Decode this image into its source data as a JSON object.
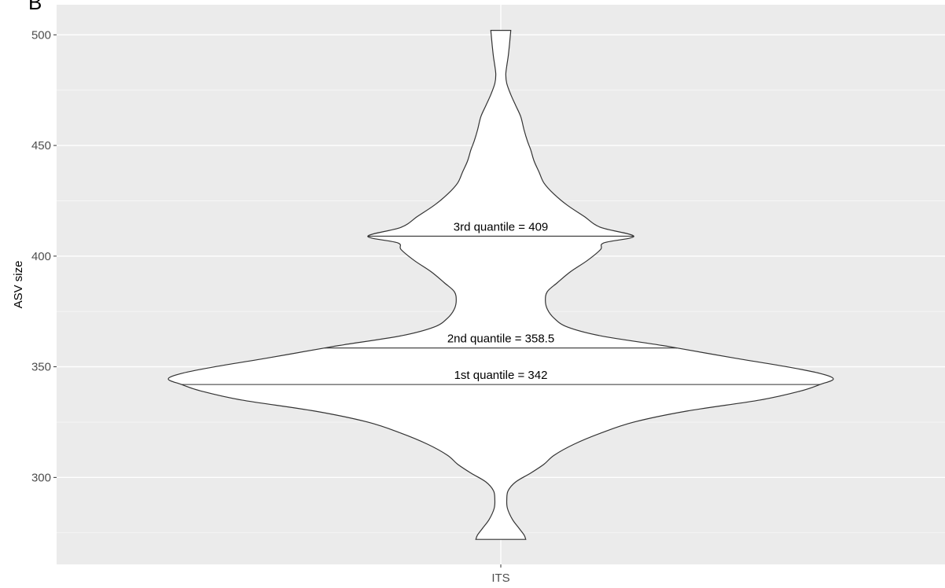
{
  "panel_label": "B",
  "chart_data": {
    "type": "violin",
    "category": "ITS",
    "ylabel": "ASV size",
    "xlabel": "",
    "ylim": [
      260.7,
      513.6
    ],
    "yticks": [
      300,
      350,
      400,
      450,
      500
    ],
    "grid": true,
    "density_profile": [
      [
        272,
        0.075
      ],
      [
        274,
        0.07
      ],
      [
        277,
        0.055
      ],
      [
        281,
        0.035
      ],
      [
        286,
        0.02
      ],
      [
        290,
        0.018
      ],
      [
        294,
        0.022
      ],
      [
        298,
        0.045
      ],
      [
        302,
        0.09
      ],
      [
        306,
        0.13
      ],
      [
        310,
        0.16
      ],
      [
        315,
        0.22
      ],
      [
        320,
        0.3
      ],
      [
        325,
        0.4
      ],
      [
        330,
        0.56
      ],
      [
        335,
        0.78
      ],
      [
        339,
        0.9
      ],
      [
        342,
        0.96
      ],
      [
        344.5,
        1.0
      ],
      [
        347,
        0.96
      ],
      [
        350,
        0.86
      ],
      [
        354,
        0.7
      ],
      [
        358.5,
        0.53
      ],
      [
        360,
        0.47
      ],
      [
        364,
        0.3
      ],
      [
        368,
        0.2
      ],
      [
        372,
        0.16
      ],
      [
        376,
        0.14
      ],
      [
        380,
        0.134
      ],
      [
        384,
        0.14
      ],
      [
        388,
        0.17
      ],
      [
        393,
        0.21
      ],
      [
        398,
        0.26
      ],
      [
        403,
        0.3
      ],
      [
        406,
        0.31
      ],
      [
        409,
        0.4
      ],
      [
        413,
        0.3
      ],
      [
        418,
        0.25
      ],
      [
        423,
        0.2
      ],
      [
        428,
        0.16
      ],
      [
        433,
        0.13
      ],
      [
        438,
        0.115
      ],
      [
        443,
        0.1
      ],
      [
        448,
        0.09
      ],
      [
        452,
        0.08
      ],
      [
        457,
        0.07
      ],
      [
        463,
        0.06
      ],
      [
        468,
        0.045
      ],
      [
        473,
        0.03
      ],
      [
        478,
        0.018
      ],
      [
        482,
        0.015
      ],
      [
        486,
        0.018
      ],
      [
        490,
        0.022
      ],
      [
        494,
        0.025
      ],
      [
        497,
        0.027
      ],
      [
        502,
        0.03
      ]
    ],
    "quantiles": [
      {
        "label": "1st quantile = 342",
        "value": 342,
        "half_width": 0.96
      },
      {
        "label": "2nd quantile = 358.5",
        "value": 358.5,
        "half_width": 0.53
      },
      {
        "label": "3rd quantile = 409",
        "value": 409,
        "half_width": 0.4
      }
    ]
  }
}
